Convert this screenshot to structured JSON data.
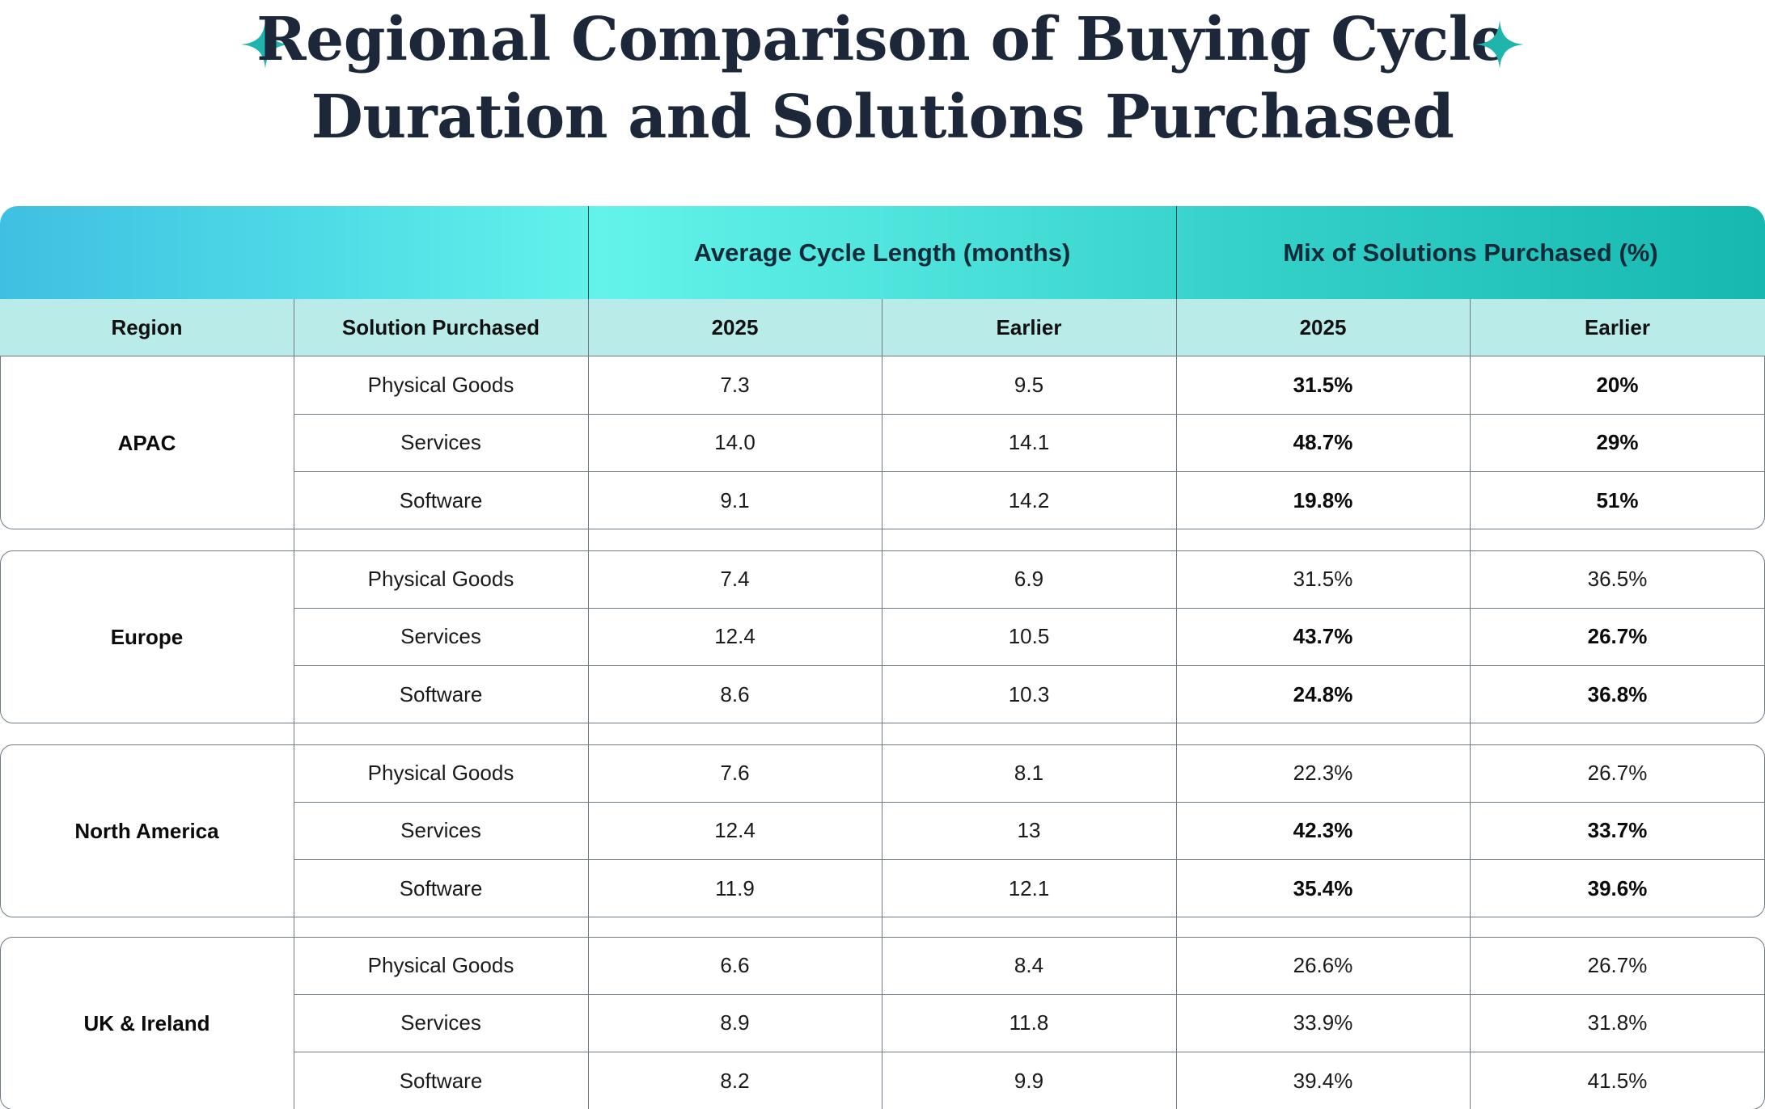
{
  "title_line1": "Regional Comparison of Buying Cycle",
  "title_line2": "Duration and Solutions Purchased",
  "colors": {
    "title": "#1c2739",
    "accent": "#1fb5ad",
    "subheader_bg": "#b9ebe8"
  },
  "icons": [
    "sparkle-icon",
    "sparkle-icon"
  ],
  "chart_data": {
    "type": "table",
    "group_headers": [
      "Average Cycle Length (months)",
      "Mix of Solutions Purchased (%)"
    ],
    "columns": [
      "Region",
      "Solution Purchased",
      "2025",
      "Earlier",
      "2025",
      "Earlier"
    ],
    "regions": [
      {
        "name": "APAC",
        "rows": [
          {
            "solution": "Physical Goods",
            "cycle_2025": "7.3",
            "cycle_earlier": "9.5",
            "mix_2025": "31.5%",
            "mix_earlier": "20%",
            "bold": true
          },
          {
            "solution": "Services",
            "cycle_2025": "14.0",
            "cycle_earlier": "14.1",
            "mix_2025": "48.7%",
            "mix_earlier": "29%",
            "bold": true
          },
          {
            "solution": "Software",
            "cycle_2025": "9.1",
            "cycle_earlier": "14.2",
            "mix_2025": "19.8%",
            "mix_earlier": "51%",
            "bold": true
          }
        ]
      },
      {
        "name": "Europe",
        "rows": [
          {
            "solution": "Physical Goods",
            "cycle_2025": "7.4",
            "cycle_earlier": "6.9",
            "mix_2025": "31.5%",
            "mix_earlier": "36.5%",
            "bold": false
          },
          {
            "solution": "Services",
            "cycle_2025": "12.4",
            "cycle_earlier": "10.5",
            "mix_2025": "43.7%",
            "mix_earlier": "26.7%",
            "bold": true
          },
          {
            "solution": "Software",
            "cycle_2025": "8.6",
            "cycle_earlier": "10.3",
            "mix_2025": "24.8%",
            "mix_earlier": "36.8%",
            "bold": true
          }
        ]
      },
      {
        "name": "North America",
        "rows": [
          {
            "solution": "Physical Goods",
            "cycle_2025": "7.6",
            "cycle_earlier": "8.1",
            "mix_2025": "22.3%",
            "mix_earlier": "26.7%",
            "bold": false
          },
          {
            "solution": "Services",
            "cycle_2025": "12.4",
            "cycle_earlier": "13",
            "mix_2025": "42.3%",
            "mix_earlier": "33.7%",
            "bold": true
          },
          {
            "solution": "Software",
            "cycle_2025": "11.9",
            "cycle_earlier": "12.1",
            "mix_2025": "35.4%",
            "mix_earlier": "39.6%",
            "bold": true
          }
        ]
      },
      {
        "name": "UK & Ireland",
        "rows": [
          {
            "solution": "Physical Goods",
            "cycle_2025": "6.6",
            "cycle_earlier": "8.4",
            "mix_2025": "26.6%",
            "mix_earlier": "26.7%",
            "bold": false
          },
          {
            "solution": "Services",
            "cycle_2025": "8.9",
            "cycle_earlier": "11.8",
            "mix_2025": "33.9%",
            "mix_earlier": "31.8%",
            "bold": false
          },
          {
            "solution": "Software",
            "cycle_2025": "8.2",
            "cycle_earlier": "9.9",
            "mix_2025": "39.4%",
            "mix_earlier": "41.5%",
            "bold": false
          }
        ]
      }
    ]
  }
}
